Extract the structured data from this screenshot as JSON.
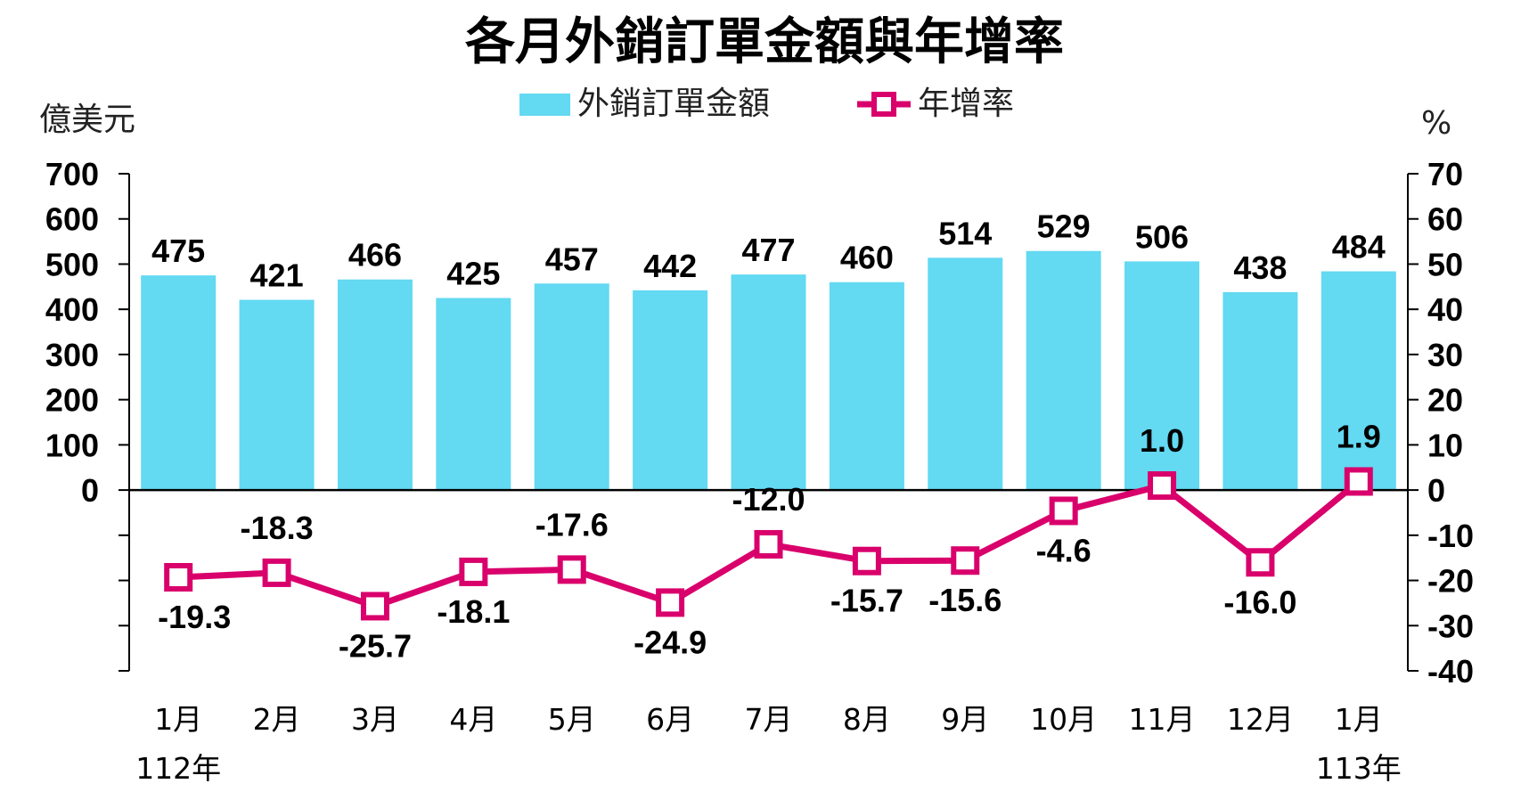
{
  "title": "各月外銷訂單金額與年增率",
  "legend": {
    "bar_label": "外銷訂單金額",
    "line_label": "年增率"
  },
  "units": {
    "left": "億美元",
    "right": "%"
  },
  "colors": {
    "bar": "#63D9F2",
    "line": "#D9006C",
    "axis": "#000000"
  },
  "chart_data": {
    "type": "bar+line",
    "title": "各月外銷訂單金額與年增率",
    "categories": [
      "1月",
      "2月",
      "3月",
      "4月",
      "5月",
      "6月",
      "7月",
      "8月",
      "9月",
      "10月",
      "11月",
      "12月",
      "1月"
    ],
    "year_labels": [
      {
        "index": 0,
        "label": "112年"
      },
      {
        "index": 12,
        "label": "113年"
      }
    ],
    "series": [
      {
        "name": "外銷訂單金額",
        "type": "bar",
        "axis": "left",
        "values": [
          475,
          421,
          466,
          425,
          457,
          442,
          477,
          460,
          514,
          529,
          506,
          438,
          484
        ],
        "labels": [
          "475",
          "421",
          "466",
          "425",
          "457",
          "442",
          "477",
          "460",
          "514",
          "529",
          "506",
          "438",
          "484"
        ]
      },
      {
        "name": "年增率",
        "type": "line",
        "axis": "right",
        "values": [
          -19.3,
          -18.3,
          -25.7,
          -18.1,
          -17.6,
          -24.9,
          -12.0,
          -15.7,
          -15.6,
          -4.6,
          1.0,
          -16.0,
          1.9
        ],
        "labels": [
          "-19.3",
          "-18.3",
          "-25.7",
          "-18.1",
          "-17.6",
          "-24.9",
          "-12.0",
          "-15.7",
          "-15.6",
          "-4.6",
          "1.0",
          "-16.0",
          "1.9"
        ]
      }
    ],
    "left_axis": {
      "label": "億美元",
      "range": [
        -400,
        700
      ],
      "tick_labels": [
        "700",
        "600",
        "500",
        "400",
        "300",
        "200",
        "100",
        "0"
      ]
    },
    "right_axis": {
      "label": "%",
      "range": [
        -40,
        70
      ],
      "tick_labels": [
        "70",
        "60",
        "50",
        "40",
        "30",
        "20",
        "10",
        "0",
        "-10",
        "-20",
        "-30",
        "-40"
      ]
    },
    "grid": false,
    "legend_position": "top-center"
  }
}
